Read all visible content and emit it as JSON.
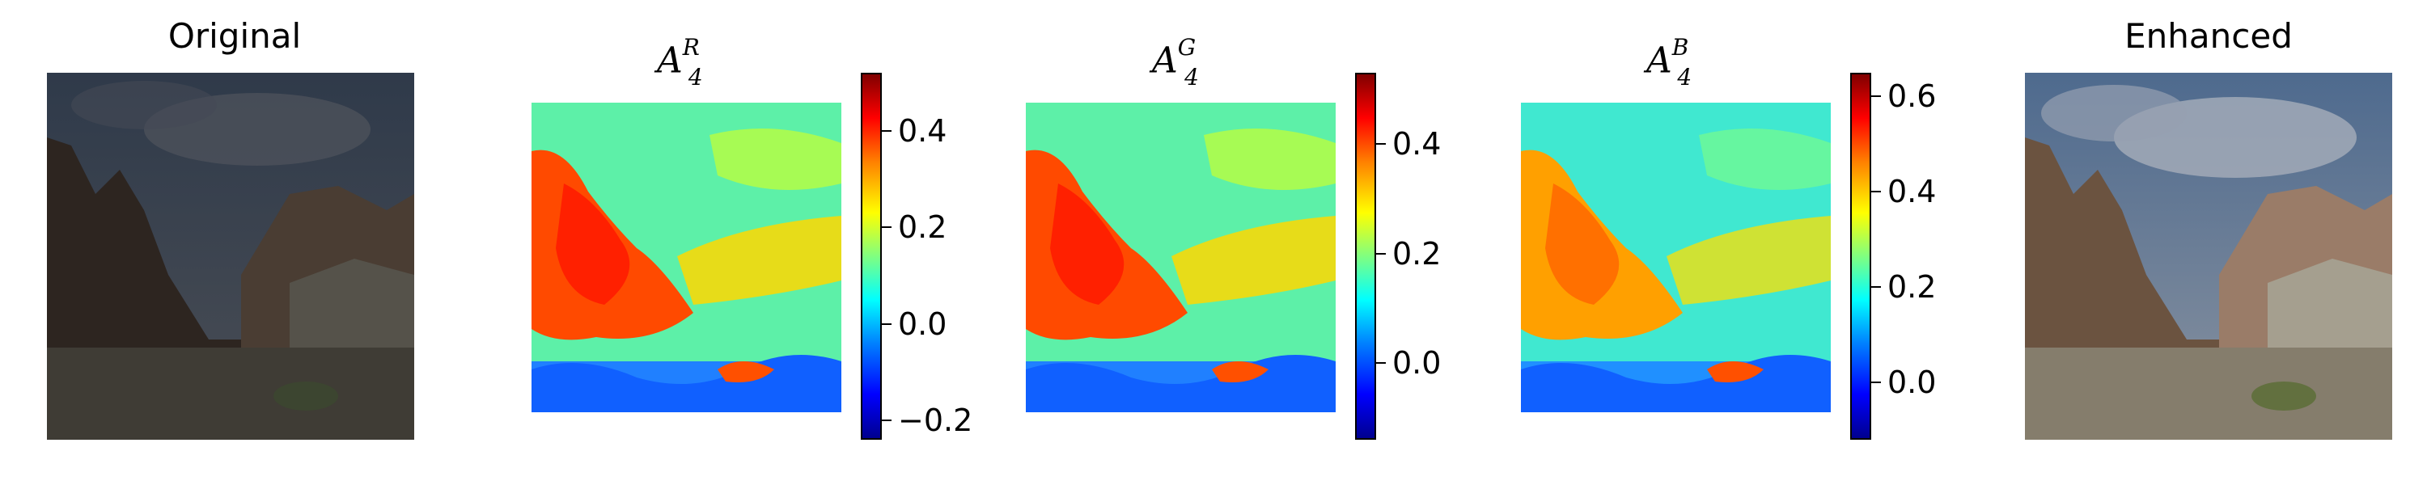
{
  "panels": {
    "original": {
      "title": "Original"
    },
    "enhanced": {
      "title": "Enhanced"
    },
    "maps": [
      {
        "symbol": "A",
        "sup": "R",
        "sub": "4",
        "ticks": [
          "−0.2",
          "0.0",
          "0.2",
          "0.4"
        ],
        "vmin": -0.24,
        "vmax": 0.52,
        "values": [
          -0.2,
          0.0,
          0.2,
          0.4
        ]
      },
      {
        "symbol": "A",
        "sup": "G",
        "sub": "4",
        "ticks": [
          "0.0",
          "0.2",
          "0.4"
        ],
        "vmin": -0.14,
        "vmax": 0.53,
        "values": [
          0.0,
          0.2,
          0.4
        ]
      },
      {
        "symbol": "A",
        "sup": "B",
        "sub": "4",
        "ticks": [
          "0.0",
          "0.2",
          "0.4",
          "0.6"
        ],
        "vmin": -0.12,
        "vmax": 0.65,
        "values": [
          0.0,
          0.2,
          0.4,
          0.6
        ]
      }
    ]
  },
  "colors": {
    "jet_low": "#00008f",
    "jet_high": "#800000"
  }
}
